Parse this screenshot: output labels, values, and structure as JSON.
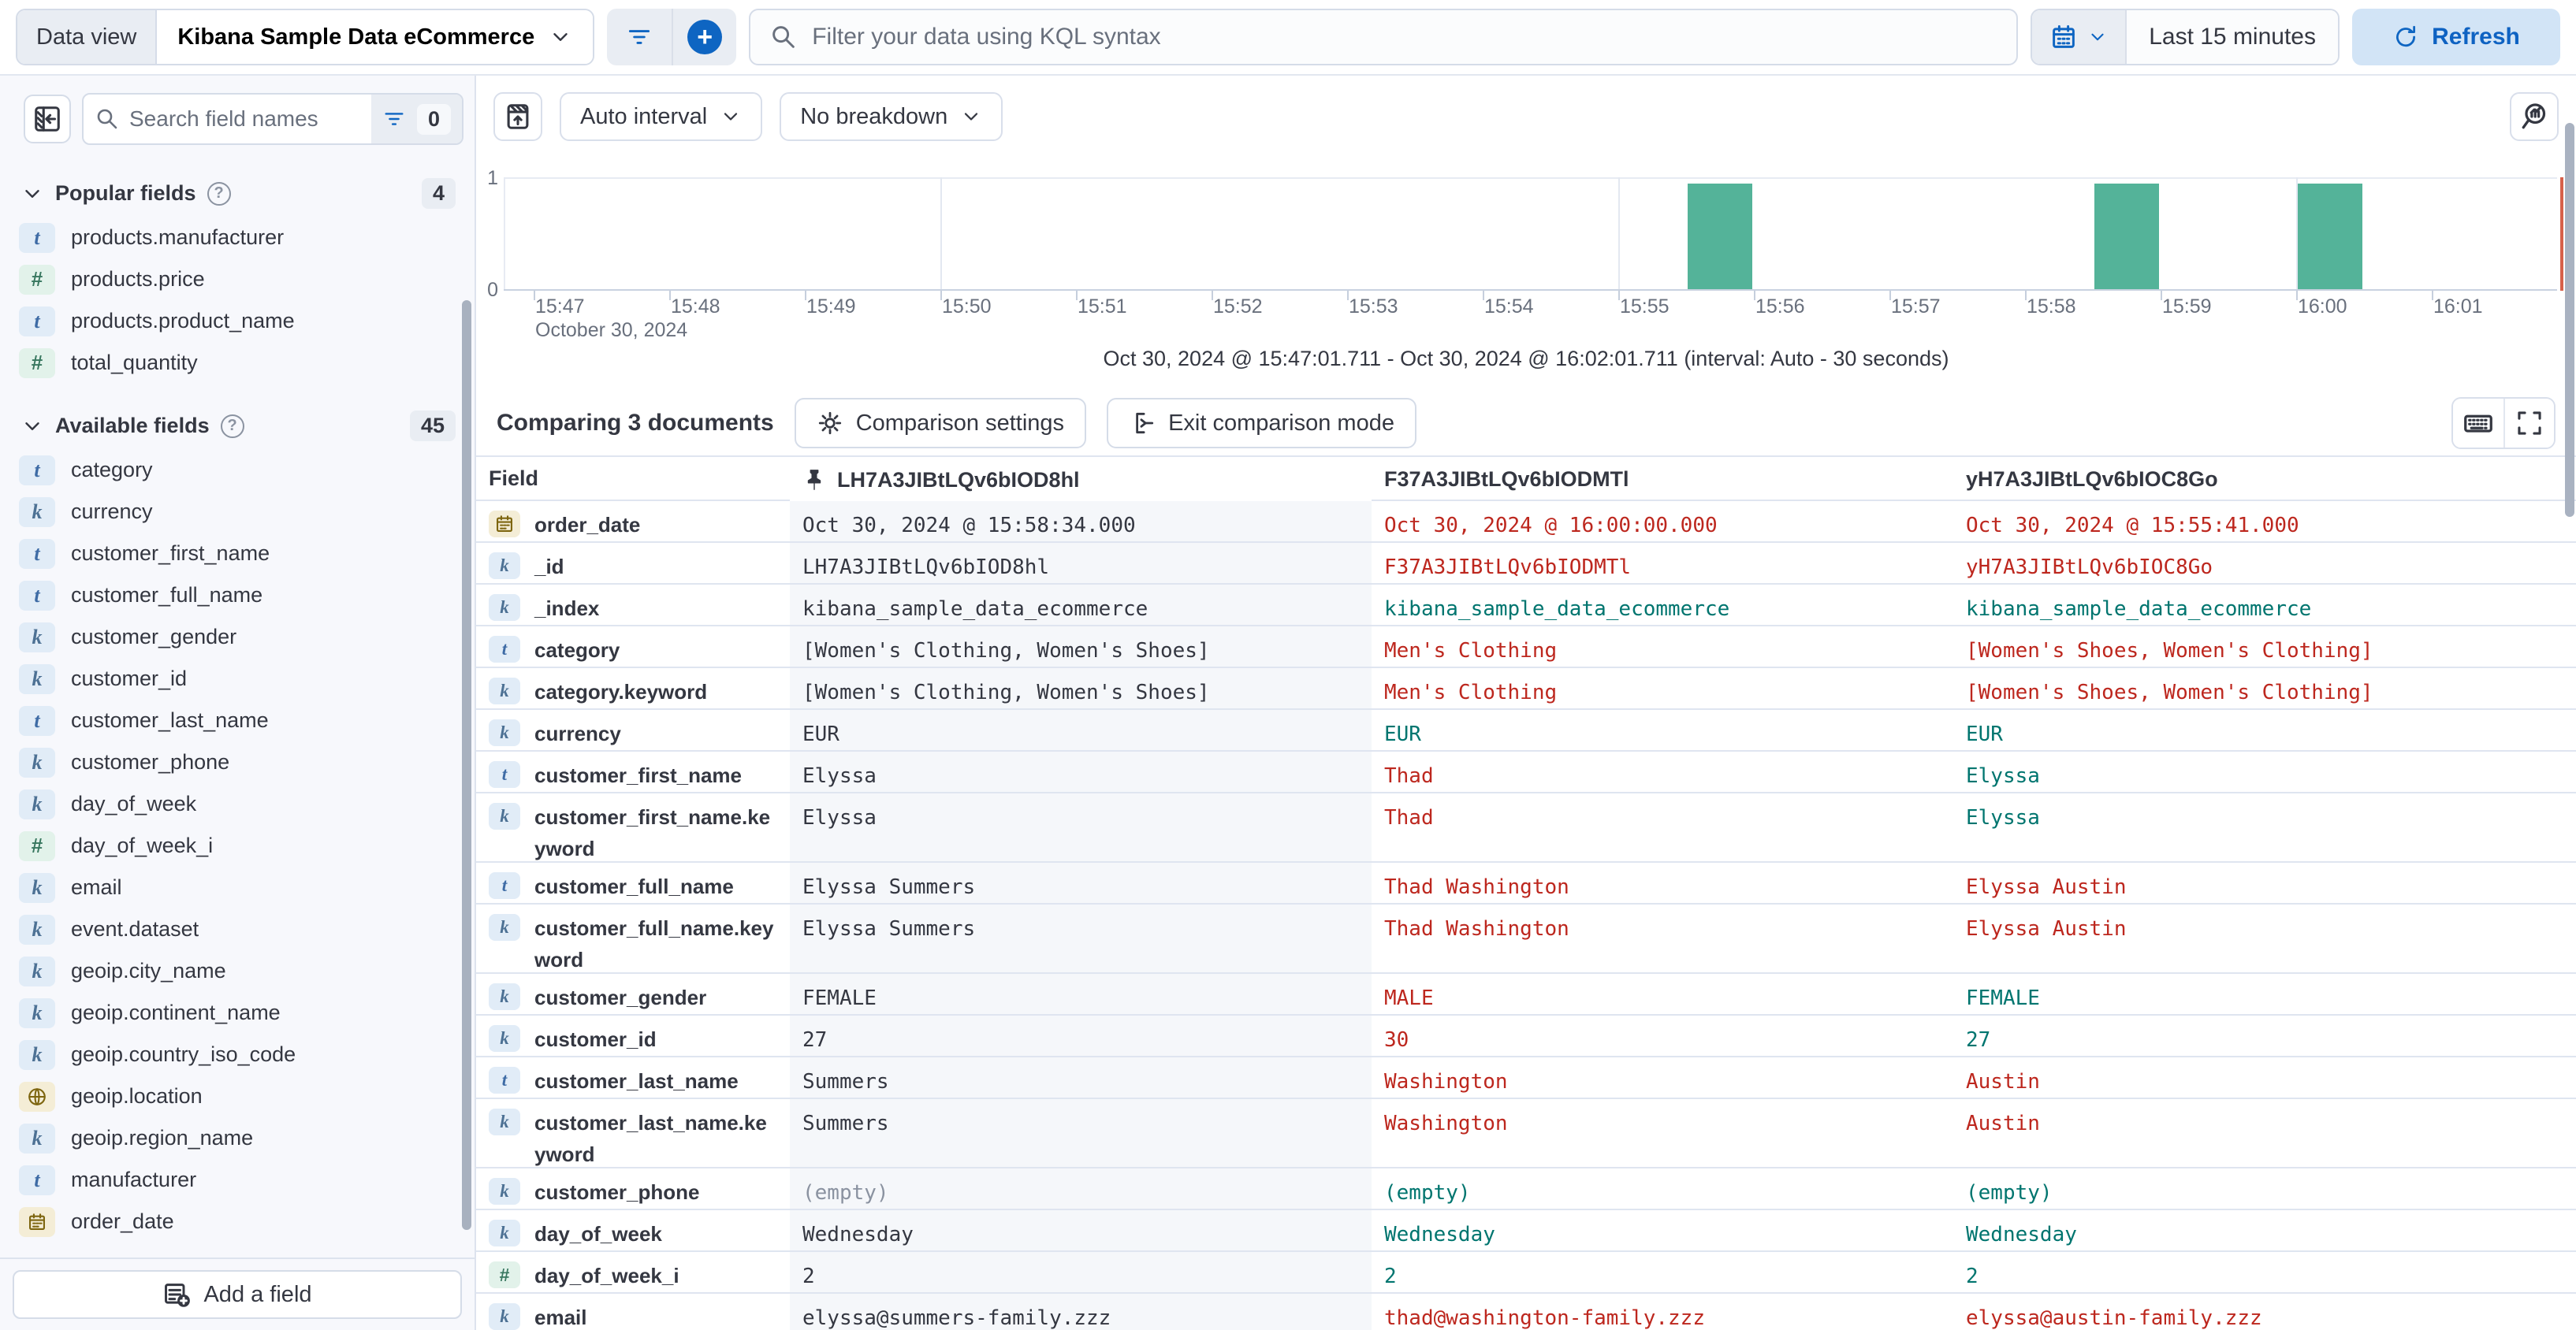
{
  "topbar": {
    "data_view_label": "Data view",
    "data_view_value": "Kibana Sample Data eCommerce",
    "kql_placeholder": "Filter your data using KQL syntax",
    "time_range": "Last 15 minutes",
    "refresh_label": "Refresh"
  },
  "sidebar": {
    "search_placeholder": "Search field names",
    "filter_count": "0",
    "popular": {
      "title": "Popular fields",
      "count": "4",
      "items": [
        {
          "type": "t",
          "name": "products.manufacturer"
        },
        {
          "type": "#",
          "name": "products.price"
        },
        {
          "type": "t",
          "name": "products.product_name"
        },
        {
          "type": "#",
          "name": "total_quantity"
        }
      ]
    },
    "available": {
      "title": "Available fields",
      "count": "45",
      "items": [
        {
          "type": "t",
          "name": "category"
        },
        {
          "type": "k",
          "name": "currency"
        },
        {
          "type": "t",
          "name": "customer_first_name"
        },
        {
          "type": "t",
          "name": "customer_full_name"
        },
        {
          "type": "k",
          "name": "customer_gender"
        },
        {
          "type": "k",
          "name": "customer_id"
        },
        {
          "type": "t",
          "name": "customer_last_name"
        },
        {
          "type": "k",
          "name": "customer_phone"
        },
        {
          "type": "k",
          "name": "day_of_week"
        },
        {
          "type": "#",
          "name": "day_of_week_i"
        },
        {
          "type": "k",
          "name": "email"
        },
        {
          "type": "k",
          "name": "event.dataset"
        },
        {
          "type": "k",
          "name": "geoip.city_name"
        },
        {
          "type": "k",
          "name": "geoip.continent_name"
        },
        {
          "type": "k",
          "name": "geoip.country_iso_code"
        },
        {
          "type": "geo",
          "name": "geoip.location"
        },
        {
          "type": "k",
          "name": "geoip.region_name"
        },
        {
          "type": "t",
          "name": "manufacturer"
        },
        {
          "type": "date",
          "name": "order_date"
        }
      ]
    },
    "add_field_label": "Add a field"
  },
  "chart_toolbar": {
    "interval_label": "Auto interval",
    "breakdown_label": "No breakdown"
  },
  "chart_data": {
    "type": "bar",
    "title": "Document count histogram",
    "x_ticks": [
      "15:47",
      "15:48",
      "15:49",
      "15:50",
      "15:51",
      "15:52",
      "15:53",
      "15:54",
      "15:55",
      "15:56",
      "15:57",
      "15:58",
      "15:59",
      "16:00",
      "16:01"
    ],
    "x_context": "October 30, 2024",
    "y_ticks": [
      "0",
      "1"
    ],
    "ylim": [
      0,
      1
    ],
    "gridline_ticks": [
      "15:50",
      "15:55",
      "16:00"
    ],
    "bars": [
      {
        "time": "15:55:30",
        "value": 1
      },
      {
        "time": "15:58:30",
        "value": 1
      },
      {
        "time": "16:00:00",
        "value": 1
      }
    ],
    "bar_color": "#54b399",
    "caption": "Oct 30, 2024 @ 15:47:01.711 - Oct 30, 2024 @ 16:02:01.711 (interval: Auto - 30 seconds)"
  },
  "comparison": {
    "title": "Comparing 3 documents",
    "settings_label": "Comparison settings",
    "exit_label": "Exit comparison mode"
  },
  "table": {
    "field_header": "Field",
    "columns": [
      "LH7A3JIBtLQv6bIOD8hl",
      "F37A3JIBtLQv6bIODMTl",
      "yH7A3JIBtLQv6bIOC8Go"
    ],
    "rows": [
      {
        "type": "date",
        "field": "order_date",
        "cells": [
          {
            "v": "Oct 30, 2024 @ 15:58:34.000",
            "s": "base"
          },
          {
            "v": "Oct 30, 2024 @ 16:00:00.000",
            "s": "diff"
          },
          {
            "v": "Oct 30, 2024 @ 15:55:41.000",
            "s": "diff"
          }
        ]
      },
      {
        "type": "k",
        "field": "_id",
        "cells": [
          {
            "v": "LH7A3JIBtLQv6bIOD8hl",
            "s": "base"
          },
          {
            "v": "F37A3JIBtLQv6bIODMTl",
            "s": "diff"
          },
          {
            "v": "yH7A3JIBtLQv6bIOC8Go",
            "s": "diff"
          }
        ]
      },
      {
        "type": "k",
        "field": "_index",
        "cells": [
          {
            "v": "kibana_sample_data_ecommerce",
            "s": "base"
          },
          {
            "v": "kibana_sample_data_ecommerce",
            "s": "same"
          },
          {
            "v": "kibana_sample_data_ecommerce",
            "s": "same"
          }
        ]
      },
      {
        "type": "t",
        "field": "category",
        "cells": [
          {
            "v": "[Women's Clothing, Women's Shoes]",
            "s": "base"
          },
          {
            "v": "Men's Clothing",
            "s": "diff"
          },
          {
            "v": "[Women's Shoes, Women's Clothing]",
            "s": "diff"
          }
        ]
      },
      {
        "type": "k",
        "field": "category.keyword",
        "cells": [
          {
            "v": "[Women's Clothing, Women's Shoes]",
            "s": "base"
          },
          {
            "v": "Men's Clothing",
            "s": "diff"
          },
          {
            "v": "[Women's Shoes, Women's Clothing]",
            "s": "diff"
          }
        ]
      },
      {
        "type": "k",
        "field": "currency",
        "cells": [
          {
            "v": "EUR",
            "s": "base"
          },
          {
            "v": "EUR",
            "s": "same"
          },
          {
            "v": "EUR",
            "s": "same"
          }
        ]
      },
      {
        "type": "t",
        "field": "customer_first_name",
        "cells": [
          {
            "v": "Elyssa",
            "s": "base"
          },
          {
            "v": "Thad",
            "s": "diff"
          },
          {
            "v": "Elyssa",
            "s": "same"
          }
        ]
      },
      {
        "type": "k",
        "field": "customer_first_name.keyword",
        "tall": true,
        "cells": [
          {
            "v": "Elyssa",
            "s": "base"
          },
          {
            "v": "Thad",
            "s": "diff"
          },
          {
            "v": "Elyssa",
            "s": "same"
          }
        ]
      },
      {
        "type": "t",
        "field": "customer_full_name",
        "cells": [
          {
            "v": "Elyssa Summers",
            "s": "base"
          },
          {
            "v": "Thad Washington",
            "s": "diff"
          },
          {
            "v": "Elyssa Austin",
            "s": "diff"
          }
        ]
      },
      {
        "type": "k",
        "field": "customer_full_name.keyword",
        "tall": true,
        "cells": [
          {
            "v": "Elyssa Summers",
            "s": "base"
          },
          {
            "v": "Thad Washington",
            "s": "diff"
          },
          {
            "v": "Elyssa Austin",
            "s": "diff"
          }
        ]
      },
      {
        "type": "k",
        "field": "customer_gender",
        "cells": [
          {
            "v": "FEMALE",
            "s": "base"
          },
          {
            "v": "MALE",
            "s": "diff"
          },
          {
            "v": "FEMALE",
            "s": "same"
          }
        ]
      },
      {
        "type": "k",
        "field": "customer_id",
        "cells": [
          {
            "v": "27",
            "s": "base"
          },
          {
            "v": "30",
            "s": "diff"
          },
          {
            "v": "27",
            "s": "same"
          }
        ]
      },
      {
        "type": "t",
        "field": "customer_last_name",
        "cells": [
          {
            "v": "Summers",
            "s": "base"
          },
          {
            "v": "Washington",
            "s": "diff"
          },
          {
            "v": "Austin",
            "s": "diff"
          }
        ]
      },
      {
        "type": "k",
        "field": "customer_last_name.keyword",
        "tall": true,
        "cells": [
          {
            "v": "Summers",
            "s": "base"
          },
          {
            "v": "Washington",
            "s": "diff"
          },
          {
            "v": "Austin",
            "s": "diff"
          }
        ]
      },
      {
        "type": "k",
        "field": "customer_phone",
        "cells": [
          {
            "v": "(empty)",
            "s": "empty"
          },
          {
            "v": "(empty)",
            "s": "same"
          },
          {
            "v": "(empty)",
            "s": "same"
          }
        ]
      },
      {
        "type": "k",
        "field": "day_of_week",
        "cells": [
          {
            "v": "Wednesday",
            "s": "base"
          },
          {
            "v": "Wednesday",
            "s": "same"
          },
          {
            "v": "Wednesday",
            "s": "same"
          }
        ]
      },
      {
        "type": "#",
        "field": "day_of_week_i",
        "cells": [
          {
            "v": "2",
            "s": "base"
          },
          {
            "v": "2",
            "s": "same"
          },
          {
            "v": "2",
            "s": "same"
          }
        ]
      },
      {
        "type": "k",
        "field": "email",
        "cells": [
          {
            "v": "elyssa@summers-family.zzz",
            "s": "base"
          },
          {
            "v": "thad@washington-family.zzz",
            "s": "diff"
          },
          {
            "v": "elyssa@austin-family.zzz",
            "s": "diff"
          }
        ]
      }
    ]
  },
  "colors": {
    "accent_blue": "#0e65c2",
    "danger": "#bd271e",
    "success": "#00756f",
    "bar_green": "#54b399"
  }
}
